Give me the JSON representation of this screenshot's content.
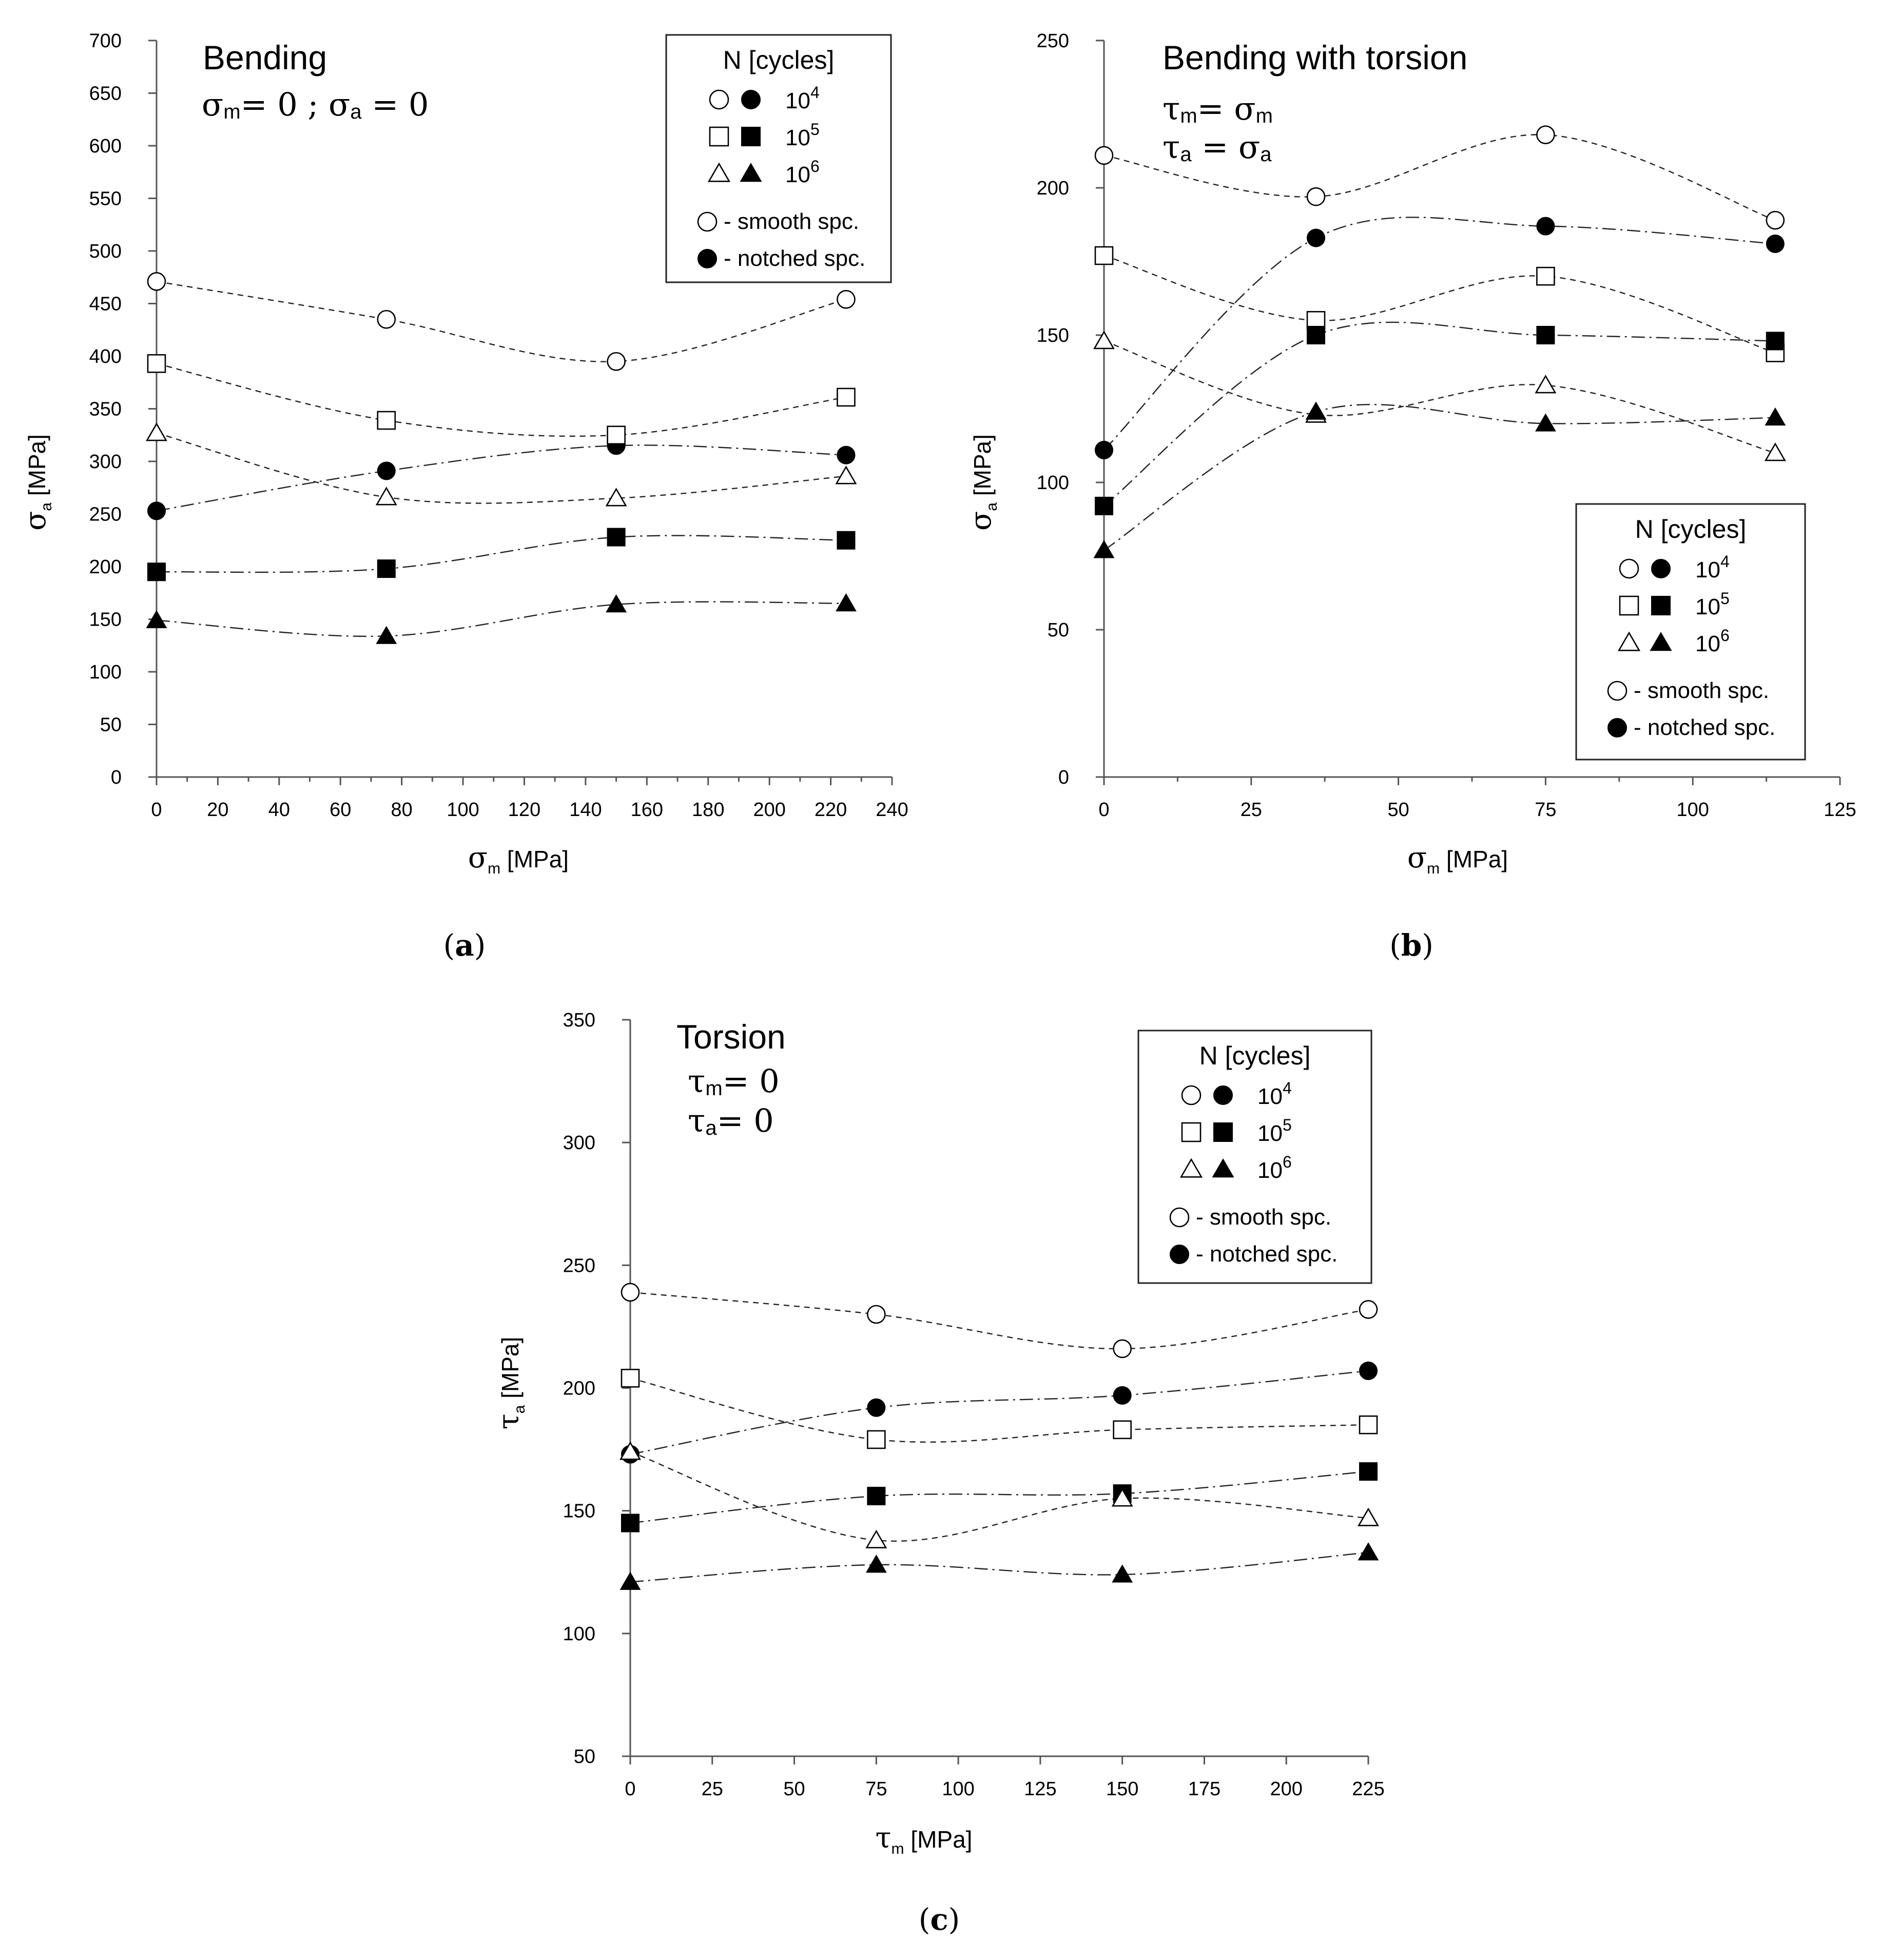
{
  "chart_data": [
    {
      "id": "a",
      "type": "scatter",
      "caption": "a",
      "title": "Bending",
      "annotation_lines": [
        {
          "sym1": "σ",
          "sub1": "m",
          "mid": "= 0 ; ",
          "sym2": "σ",
          "sub2": "a",
          "rest": " = 0"
        }
      ],
      "xlabel": {
        "sym": "σ",
        "sub": "m",
        "unit": " [MPa]"
      },
      "ylabel": {
        "sym": "σ",
        "sub": "a",
        "unit": " [MPa]"
      },
      "xlim": [
        0,
        240
      ],
      "ylim": [
        0,
        700
      ],
      "xticks": [
        0,
        20,
        40,
        60,
        80,
        100,
        120,
        140,
        160,
        180,
        200,
        220,
        240
      ],
      "yticks": [
        0,
        50,
        100,
        150,
        200,
        250,
        300,
        350,
        400,
        450,
        500,
        550,
        600,
        650,
        700
      ],
      "legend_position": "top-right",
      "series": [
        {
          "name": "10^4 smooth",
          "marker": "circle",
          "fill": "open",
          "line": "dashed",
          "x": [
            0,
            75,
            150,
            225
          ],
          "y": [
            471,
            435,
            395,
            454
          ]
        },
        {
          "name": "10^4 notched",
          "marker": "circle",
          "fill": "filled",
          "line": "dashdot",
          "x": [
            0,
            75,
            150,
            225
          ],
          "y": [
            253,
            291,
            315,
            306
          ]
        },
        {
          "name": "10^5 smooth",
          "marker": "square",
          "fill": "open",
          "line": "dashed",
          "x": [
            0,
            75,
            150,
            225
          ],
          "y": [
            393,
            339,
            325,
            361
          ]
        },
        {
          "name": "10^5 notched",
          "marker": "square",
          "fill": "filled",
          "line": "dashdot",
          "x": [
            0,
            75,
            150,
            225
          ],
          "y": [
            195,
            198,
            228,
            225
          ]
        },
        {
          "name": "10^6 smooth",
          "marker": "triangle",
          "fill": "open",
          "line": "dashed",
          "x": [
            0,
            75,
            150,
            225
          ],
          "y": [
            327,
            266,
            265,
            286
          ]
        },
        {
          "name": "10^6 notched",
          "marker": "triangle",
          "fill": "filled",
          "line": "dashdot",
          "x": [
            0,
            75,
            150,
            225
          ],
          "y": [
            149,
            134,
            164,
            165
          ]
        }
      ]
    },
    {
      "id": "b",
      "type": "scatter",
      "caption": "b",
      "title": "Bending with torsion",
      "annotation_lines": [
        {
          "sym1": "τ",
          "sub1": "m",
          "mid": "= ",
          "sym2": "σ",
          "sub2": "m",
          "rest": ""
        },
        {
          "sym1": "τ",
          "sub1": "a",
          "mid": " = ",
          "sym2": "σ",
          "sub2": "a",
          "rest": ""
        }
      ],
      "xlabel": {
        "sym": "σ",
        "sub": "m",
        "unit": " [MPa]"
      },
      "ylabel": {
        "sym": "σ",
        "sub": "a",
        "unit": " [MPa]"
      },
      "xlim": [
        0,
        125
      ],
      "ylim": [
        0,
        250
      ],
      "xticks": [
        0,
        25,
        50,
        75,
        100,
        125
      ],
      "yticks": [
        0,
        50,
        100,
        150,
        200,
        250
      ],
      "legend_position": "center-right",
      "series": [
        {
          "name": "10^4 smooth",
          "marker": "circle",
          "fill": "open",
          "line": "dashed",
          "x": [
            0,
            36,
            75,
            114
          ],
          "y": [
            211,
            197,
            218,
            189
          ]
        },
        {
          "name": "10^4 notched",
          "marker": "circle",
          "fill": "filled",
          "line": "dashdot",
          "x": [
            0,
            36,
            75,
            114
          ],
          "y": [
            111,
            183,
            187,
            181
          ]
        },
        {
          "name": "10^5 smooth",
          "marker": "square",
          "fill": "open",
          "line": "dashed",
          "x": [
            0,
            36,
            75,
            114
          ],
          "y": [
            177,
            155,
            170,
            144
          ]
        },
        {
          "name": "10^5 notched",
          "marker": "square",
          "fill": "filled",
          "line": "dashdot",
          "x": [
            0,
            36,
            75,
            114
          ],
          "y": [
            92,
            150,
            150,
            148
          ]
        },
        {
          "name": "10^6 smooth",
          "marker": "triangle",
          "fill": "open",
          "line": "dashed",
          "x": [
            0,
            36,
            75,
            114
          ],
          "y": [
            148,
            123,
            133,
            110
          ]
        },
        {
          "name": "10^6 notched",
          "marker": "triangle",
          "fill": "filled",
          "line": "dashdot",
          "x": [
            0,
            36,
            75,
            114
          ],
          "y": [
            77,
            124,
            120,
            122
          ]
        }
      ]
    },
    {
      "id": "c",
      "type": "scatter",
      "caption": "c",
      "title": "Torsion",
      "annotation_lines": [
        {
          "sym1": "τ",
          "sub1": "m",
          "mid": "= 0",
          "sym2": "",
          "sub2": "",
          "rest": ""
        },
        {
          "sym1": "τ",
          "sub1": "a",
          "mid": "= 0",
          "sym2": "",
          "sub2": "",
          "rest": ""
        }
      ],
      "xlabel": {
        "sym": "τ",
        "sub": "m",
        "unit": " [MPa]"
      },
      "ylabel": {
        "sym": "τ",
        "sub": "a",
        "unit": " [MPa]"
      },
      "xlim": [
        0,
        225
      ],
      "ylim": [
        50,
        350
      ],
      "xticks": [
        0,
        25,
        50,
        75,
        100,
        125,
        150,
        175,
        200,
        225
      ],
      "yticks": [
        50,
        100,
        150,
        200,
        250,
        300,
        350
      ],
      "legend_position": "top-right",
      "series": [
        {
          "name": "10^4 smooth",
          "marker": "circle",
          "fill": "open",
          "line": "dashed",
          "x": [
            0,
            75,
            150,
            225
          ],
          "y": [
            239,
            230,
            216,
            232
          ]
        },
        {
          "name": "10^4 notched",
          "marker": "circle",
          "fill": "filled",
          "line": "dashdot",
          "x": [
            0,
            75,
            150,
            225
          ],
          "y": [
            173,
            192,
            197,
            207
          ]
        },
        {
          "name": "10^5 smooth",
          "marker": "square",
          "fill": "open",
          "line": "dashed",
          "x": [
            0,
            75,
            150,
            225
          ],
          "y": [
            204,
            179,
            183,
            185
          ]
        },
        {
          "name": "10^5 notched",
          "marker": "square",
          "fill": "filled",
          "line": "dashdot",
          "x": [
            0,
            75,
            150,
            225
          ],
          "y": [
            145,
            156,
            157,
            166
          ]
        },
        {
          "name": "10^6 smooth",
          "marker": "triangle",
          "fill": "open",
          "line": "dashed",
          "x": [
            0,
            75,
            150,
            225
          ],
          "y": [
            174,
            138,
            155,
            147
          ]
        },
        {
          "name": "10^6 notched",
          "marker": "triangle",
          "fill": "filled",
          "line": "dashdot",
          "x": [
            0,
            75,
            150,
            225
          ],
          "y": [
            121,
            128,
            124,
            133
          ]
        }
      ]
    }
  ],
  "legend": {
    "title": "N [cycles]",
    "rows": [
      {
        "label": "10",
        "exp": "4",
        "marker": "circle"
      },
      {
        "label": "10",
        "exp": "5",
        "marker": "square"
      },
      {
        "label": "10",
        "exp": "6",
        "marker": "triangle"
      }
    ],
    "smooth_label": "- smooth spc.",
    "notched_label": "- notched spc."
  },
  "colors": {
    "ink": "#000000",
    "axis": "#555555",
    "background": "#ffffff"
  }
}
